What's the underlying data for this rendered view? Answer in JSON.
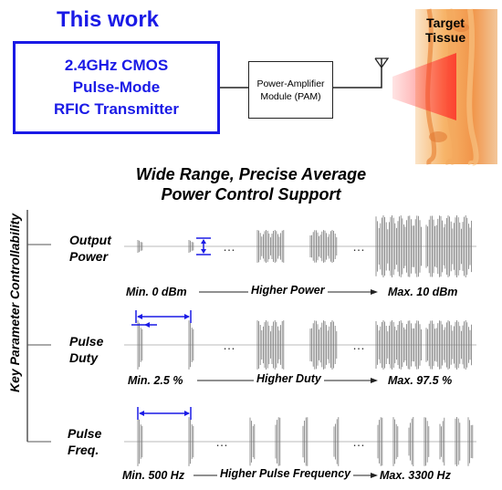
{
  "top": {
    "title": "This work",
    "rfic_lines": [
      "2.4GHz CMOS",
      "Pulse-Mode",
      "RFIC Transmitter"
    ],
    "pam_lines": [
      "Power-Amplifier",
      "Module (PAM)"
    ],
    "tissue_lines": [
      "Target",
      "Tissue"
    ]
  },
  "headline": [
    "Wide Range, Precise Average",
    "Power Control Support"
  ],
  "y_axis_label": "Key Parameter Controllability",
  "ellipsis": "…",
  "rows": [
    {
      "label_lines": [
        "Output",
        "Power"
      ],
      "min": "Min. 0 dBm",
      "mid": "Higher Power",
      "max": "Max. 10 dBm"
    },
    {
      "label_lines": [
        "Pulse",
        "Duty"
      ],
      "min": "Min. 2.5 %",
      "mid": "Higher Duty",
      "max": "Max. 97.5 %"
    },
    {
      "label_lines": [
        "Pulse",
        "Freq."
      ],
      "min": "Min. 500 Hz",
      "mid": "Higher Pulse Frequency",
      "max": "Max. 3300 Hz"
    }
  ],
  "colors": {
    "accent_blue": "#1a1ae6",
    "signal_gray": "#7a7a7a",
    "tissue_orange": "#f29a4a"
  }
}
